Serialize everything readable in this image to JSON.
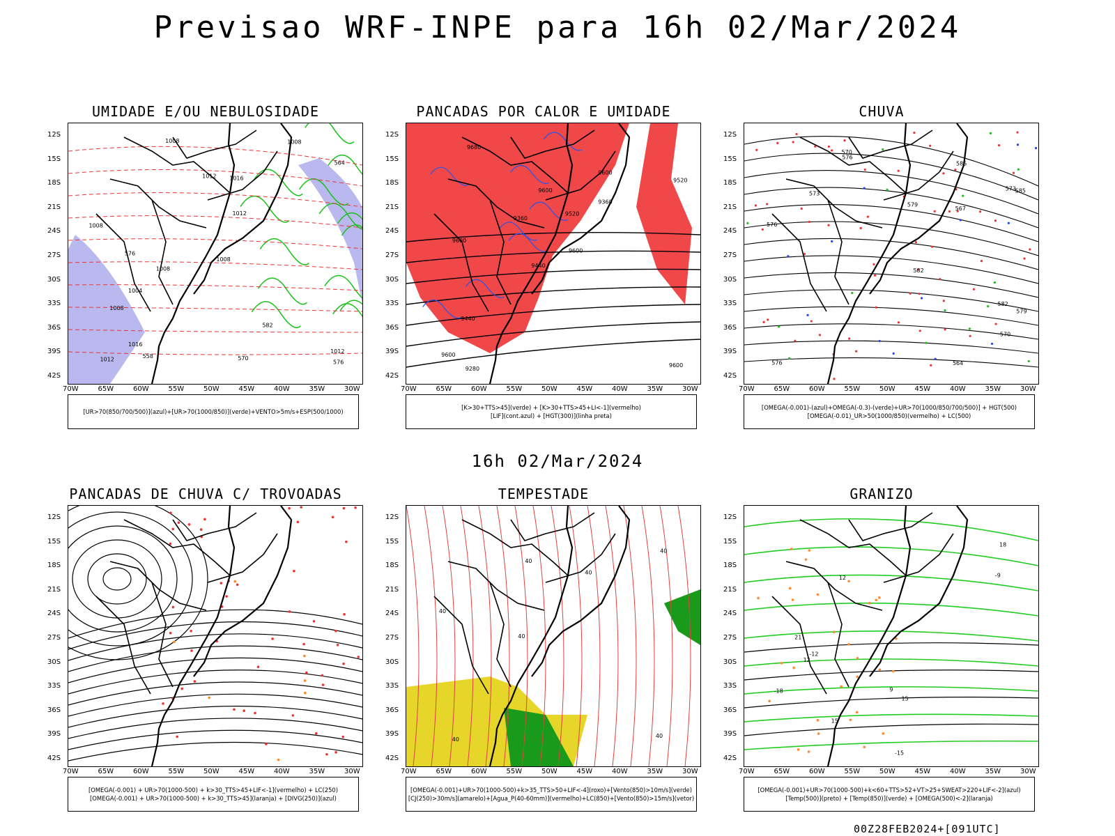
{
  "title": "Previsao WRF-INPE  para 16h 02/Mar/2024",
  "mid_date": "16h 02/Mar/2024",
  "footer": "00Z28FEB2024+[091UTC]",
  "lat_ticks": [
    "12S",
    "15S",
    "18S",
    "21S",
    "24S",
    "27S",
    "30S",
    "33S",
    "36S",
    "39S",
    "42S"
  ],
  "lon_ticks": [
    "70W",
    "65W",
    "60W",
    "55W",
    "50W",
    "45W",
    "40W",
    "35W",
    "30W"
  ],
  "panels": [
    {
      "title": "UMIDADE E/OU NEBULOSIDADE",
      "legend": [
        "[UR>70(850/700/500)](azul)+[UR>70(1000/850)](verde)+VENTO>5m/s+ESP(500/1000)"
      ],
      "contour_labels": [
        "1008",
        "1008",
        "1008",
        "1008",
        "1008",
        "1012",
        "1012",
        "1016",
        "1016",
        "1004",
        "1012",
        "1008",
        "1012",
        "582",
        "570",
        "564",
        "558",
        "576",
        "576"
      ]
    },
    {
      "title": "PANCADAS POR CALOR E UMIDADE",
      "legend": [
        "[K>30+TTS>45](verde) + [K>30+TTS>45+LI<-1](vermelho)",
        "[LIF](cont.azul) + [HGT(300)](linha preta)"
      ],
      "contour_labels": [
        "9600",
        "9600",
        "9680",
        "9600",
        "9600",
        "9520",
        "9440",
        "9360",
        "9280",
        "9600",
        "9520",
        "9440",
        "9360",
        "9600"
      ]
    },
    {
      "title": "CHUVA",
      "legend": [
        "[OMEGA(-0.001)-(azul)+OMEGA(-0.3)-(verde)+UR>70(1000/850/700/500)] + HGT(500)",
        "[OMEGA(-0.01)_UR>50(1000/850)(vermelho) + LC(500)"
      ],
      "contour_labels": [
        "585",
        "585",
        "582",
        "582",
        "579",
        "576",
        "576",
        "573",
        "570",
        "567",
        "564",
        "579",
        "576",
        "573",
        "570"
      ]
    },
    {
      "title": "PANCADAS DE CHUVA C/ TROVOADAS",
      "legend": [
        "[OMEGA(-0.001) + UR>70(1000-500) + k>30_TTS>45+LIF<-1](vermelho) + LC(250)",
        "[OMEGA(-0.001) + UR>70(1000-500) + k>30_TTS>45](laranja) + [DIVG(250)](azul)"
      ],
      "contour_labels": []
    },
    {
      "title": "TEMPESTADE",
      "legend": [
        "[OMEGA(-0.001)+UR>70(1000-500)+k>35_TTS>50+LIF<-4](roxo)+[Vento(850)>10m/s](verde)",
        "[CJ(250)>30m/s](amarelo)+[Agua_P(40-60mm)](vermelho)+LC(850)+[Vento(850)>15m/s](vetor)"
      ],
      "contour_labels": [
        "40",
        "40",
        "40",
        "40",
        "40",
        "40",
        "40"
      ]
    },
    {
      "title": "GRANIZO",
      "legend": [
        "[OMEGA(-0.001)+UR>70(1000-500)+k<60+TTS>52+VT>25+SWEAT>220+LIF<-2](azul)",
        "[Temp(500)](preto) + [Temp(850)](verde) + [OMEGA(500)<-2](laranja)"
      ],
      "contour_labels": [
        "21",
        "18",
        "15",
        "12",
        "9",
        "-9",
        "-12",
        "-15",
        "-18",
        "15",
        "12"
      ]
    }
  ]
}
